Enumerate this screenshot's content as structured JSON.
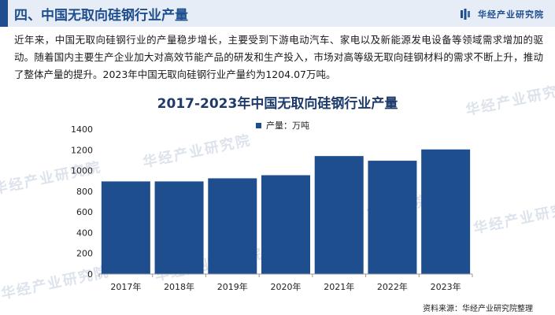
{
  "header": {
    "title": "四、中国无取向硅钢行业产量",
    "brand": "华经产业研究院"
  },
  "intro": "近年来，中国无取向硅钢行业的产量稳步增长，主要受到下游电动汽车、家电以及新能源发电设备等领域需求增加的驱动。随着国内主要生产企业加大对高效节能产品的研发和生产投入，市场对高等级无取向硅钢材料的需求不断上升，推动了整体产量的提升。2023年中国无取向硅钢行业产量约为1204.07万吨。",
  "watermark": "华经产业研究院",
  "source": "资料来源：华经产业研究院整理",
  "chart_data": {
    "type": "bar",
    "title": "2017-2023年中国无取向硅钢行业产量",
    "categories": [
      "2017年",
      "2018年",
      "2019年",
      "2020年",
      "2021年",
      "2022年",
      "2023年"
    ],
    "series": [
      {
        "name": "产量：万吨",
        "values": [
          895,
          895,
          925,
          955,
          1140,
          1095,
          1204.07
        ],
        "color": "#1f4e8f"
      }
    ],
    "yticks": [
      "0",
      "200",
      "400",
      "600",
      "800",
      "1000",
      "1200",
      "1400"
    ],
    "ylim": [
      0,
      1400
    ],
    "legend_position": "top-center",
    "grid": false
  }
}
